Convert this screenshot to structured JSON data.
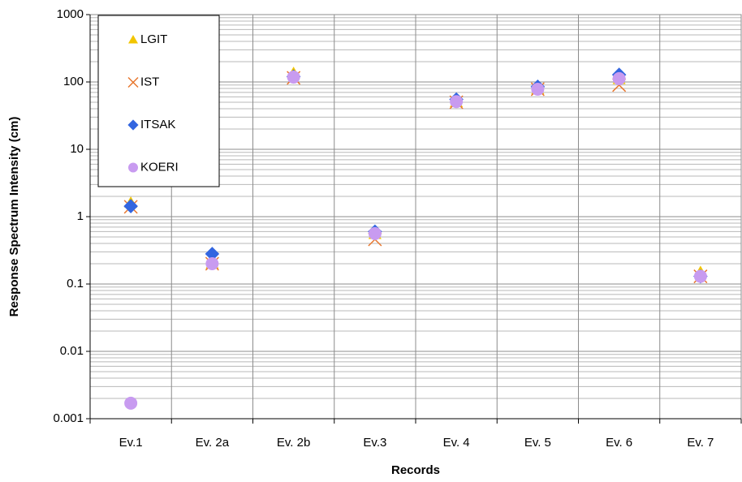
{
  "chart_data": {
    "type": "scatter",
    "x_label": "Records",
    "y_label": "Response Spectrum Intensity (cm)",
    "categories": [
      "Ev.1",
      "Ev. 2a",
      "Ev. 2b",
      "Ev.3",
      "Ev. 4",
      "Ev. 5",
      "Ev. 6",
      "Ev. 7"
    ],
    "log_y": true,
    "ylim": [
      0.001,
      1000
    ],
    "yticks": [
      0.001,
      0.01,
      0.1,
      1,
      10,
      100,
      1000
    ],
    "grid": true,
    "legend": "upper left",
    "series": [
      {
        "name": "LGIT",
        "color": "#f2c500",
        "marker": "triangle",
        "values": [
          1.6,
          0.2,
          135,
          0.55,
          50,
          78,
          110,
          0.15
        ]
      },
      {
        "name": "IST",
        "color": "#e8772e",
        "marker": "x",
        "values": [
          1.4,
          0.2,
          115,
          0.46,
          50,
          78,
          90,
          0.13
        ]
      },
      {
        "name": "ITSAK",
        "color": "#3366e0",
        "marker": "diamond",
        "values": [
          1.43,
          0.28,
          120,
          0.6,
          55,
          85,
          128,
          0.13
        ]
      },
      {
        "name": "KOERI",
        "color": "#c89bf0",
        "marker": "circle",
        "values": [
          0.0017,
          0.2,
          118,
          0.56,
          51,
          78,
          112,
          0.13
        ]
      }
    ]
  }
}
